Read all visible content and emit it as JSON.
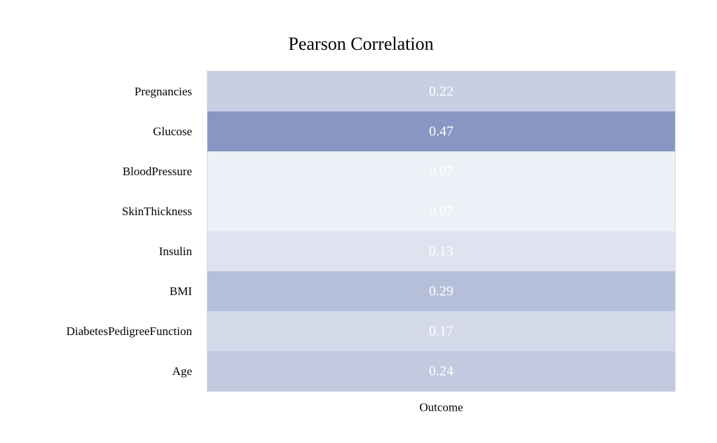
{
  "chart_data": {
    "type": "heatmap",
    "title": "Pearson Correlation",
    "rows": [
      "Pregnancies",
      "Glucose",
      "BloodPressure",
      "SkinThickness",
      "Insulin",
      "BMI",
      "DiabetesPedigreeFunction",
      "Age"
    ],
    "columns": [
      "Outcome"
    ],
    "values": [
      [
        0.22
      ],
      [
        0.47
      ],
      [
        0.07
      ],
      [
        0.07
      ],
      [
        0.13
      ],
      [
        0.29
      ],
      [
        0.17
      ],
      [
        0.24
      ]
    ],
    "value_labels": [
      [
        "0.22"
      ],
      [
        "0.47"
      ],
      [
        "0.07"
      ],
      [
        "0.07"
      ],
      [
        "0.13"
      ],
      [
        "0.29"
      ],
      [
        "0.17"
      ],
      [
        "0.24"
      ]
    ],
    "xlabel": "",
    "ylabel": "",
    "color_scale": {
      "low_color": "#eef0f7",
      "high_color": "#8797c2",
      "vmin": 0.07,
      "vmax": 0.47
    },
    "grid": false,
    "legend": "none"
  }
}
